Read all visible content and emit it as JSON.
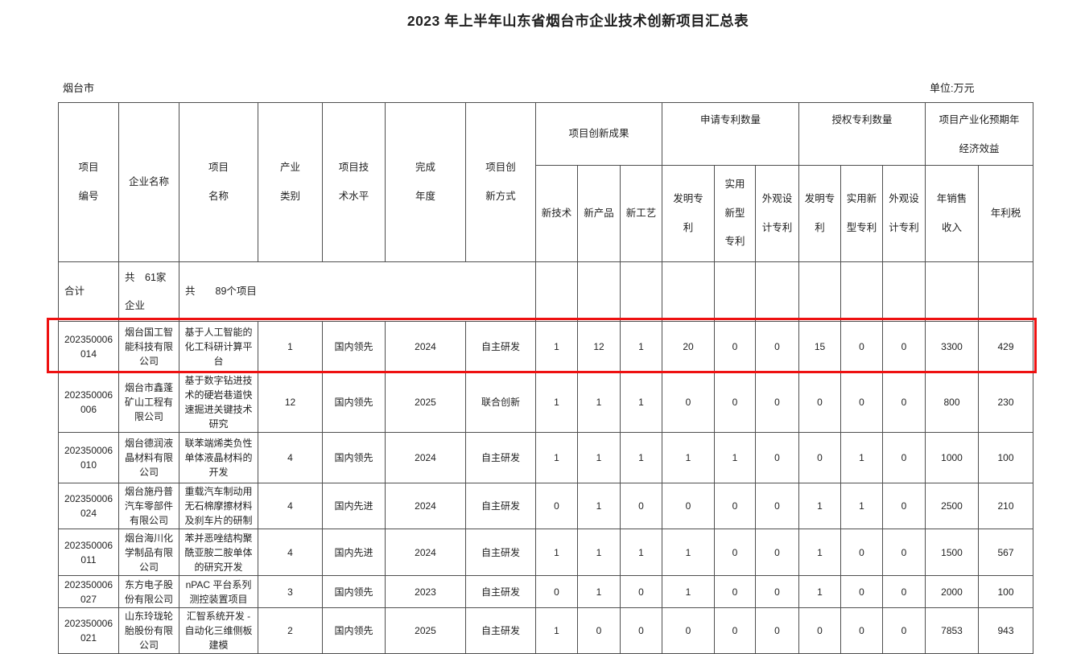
{
  "page": {
    "title": "2023 年上半年山东省烟台市企业技术创新项目汇总表",
    "region_label": "烟台市",
    "unit_label": "单位:万元"
  },
  "table": {
    "header": {
      "merged": [
        "项目\n编号",
        "企业名称",
        "项目\n名称",
        "产业\n类别",
        "项目技\n术水平",
        "完成\n年度",
        "项目创\n新方式"
      ],
      "groups": [
        {
          "label": "项目创新成果",
          "subs": [
            "新技术",
            "新产品",
            "新工艺"
          ]
        },
        {
          "label": "申请专利数量",
          "subs": [
            "发明专\n利",
            "实用\n新型\n专利",
            "外观设\n计专利"
          ]
        },
        {
          "label": "授权专利数量",
          "subs": [
            "发明专\n利",
            "实用新\n型专利",
            "外观设\n计专利"
          ]
        },
        {
          "label": "项目产业化预期年\n经济效益",
          "subs": [
            "年销售\n收入",
            "年利税"
          ]
        }
      ]
    },
    "summary": {
      "label": "合计",
      "companies": "共　61家\n企业",
      "projects": "共　　89个项目"
    },
    "rows": [
      {
        "id": "202350006014",
        "company": "烟台国工智能科技有限公司",
        "project": "基于人工智能的化工科研计算平台",
        "category": "1",
        "level": "国内领先",
        "year": "2024",
        "method": "自主研发",
        "values": [
          "1",
          "12",
          "1",
          "20",
          "0",
          "0",
          "15",
          "0",
          "0",
          "3300",
          "429"
        ],
        "highlighted": true
      },
      {
        "id": "202350006006",
        "company": "烟台市鑫蓬矿山工程有限公司",
        "project": "基于数字钻进技术的硬岩巷道快速掘进关键技术研究",
        "category": "12",
        "level": "国内领先",
        "year": "2025",
        "method": "联合创新",
        "values": [
          "1",
          "1",
          "1",
          "0",
          "0",
          "0",
          "0",
          "0",
          "0",
          "800",
          "230"
        ],
        "highlighted": false
      },
      {
        "id": "202350006010",
        "company": "烟台德润液晶材料有限公司",
        "project": "联苯端烯类负性单体液晶材料的开发",
        "category": "4",
        "level": "国内领先",
        "year": "2024",
        "method": "自主研发",
        "values": [
          "1",
          "1",
          "1",
          "1",
          "1",
          "0",
          "0",
          "1",
          "0",
          "1000",
          "100"
        ],
        "highlighted": false
      },
      {
        "id": "202350006024",
        "company": "烟台施丹普汽车零部件有限公司",
        "project": "重载汽车制动用无石棉摩擦材料及刹车片的研制",
        "category": "4",
        "level": "国内先进",
        "year": "2024",
        "method": "自主研发",
        "values": [
          "0",
          "1",
          "0",
          "0",
          "0",
          "0",
          "1",
          "1",
          "0",
          "2500",
          "210"
        ],
        "highlighted": false
      },
      {
        "id": "202350006011",
        "company": "烟台海川化学制品有限公司",
        "project": "苯并恶唑结构聚酰亚胺二胺单体的研究开发",
        "category": "4",
        "level": "国内先进",
        "year": "2024",
        "method": "自主研发",
        "values": [
          "1",
          "1",
          "1",
          "1",
          "0",
          "0",
          "1",
          "0",
          "0",
          "1500",
          "567"
        ],
        "highlighted": false
      },
      {
        "id": "202350006027",
        "company": "东方电子股份有限公司",
        "project": "nPAC 平台系列测控装置项目",
        "category": "3",
        "level": "国内领先",
        "year": "2023",
        "method": "自主研发",
        "values": [
          "0",
          "1",
          "0",
          "1",
          "0",
          "0",
          "1",
          "0",
          "0",
          "2000",
          "100"
        ],
        "highlighted": false
      },
      {
        "id": "202350006021",
        "company": "山东玲珑轮胎股份有限公司",
        "project": "汇智系统开发 - 自动化三维侧板建模",
        "category": "2",
        "level": "国内领先",
        "year": "2025",
        "method": "自主研发",
        "values": [
          "1",
          "0",
          "0",
          "0",
          "0",
          "0",
          "0",
          "0",
          "0",
          "7853",
          "943"
        ],
        "highlighted": false
      }
    ]
  },
  "annotations": {
    "highlight_color": "#ee1111"
  }
}
